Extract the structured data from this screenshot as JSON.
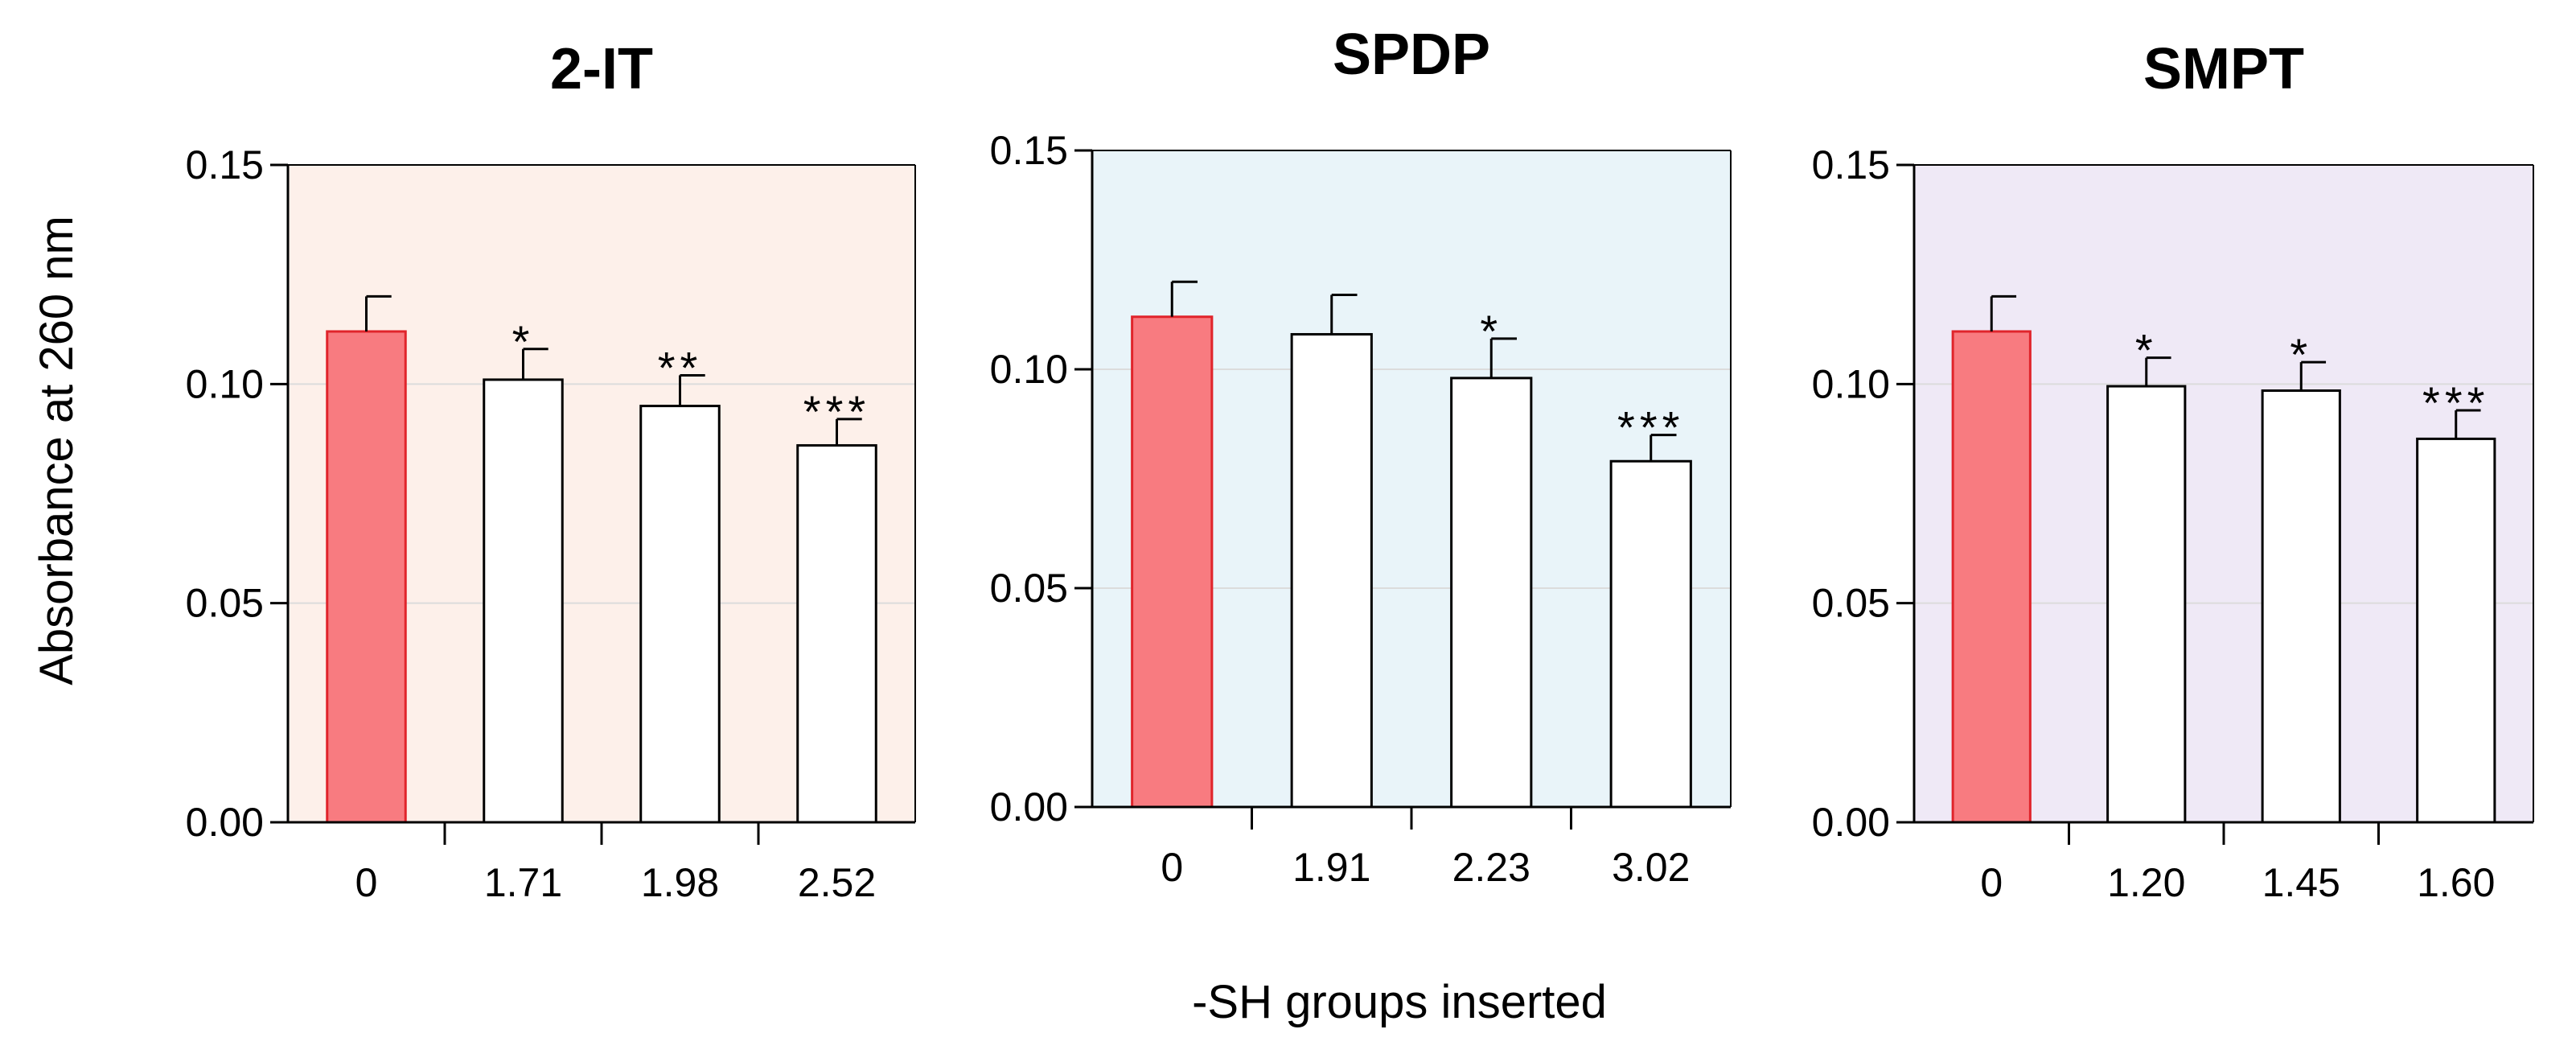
{
  "chart_data": {
    "type": "bar",
    "ylabel": "Absorbance at 260 nm",
    "xlabel": "-SH groups inserted",
    "ylim": [
      0,
      0.15
    ],
    "yticks": [
      "0.00",
      "0.05",
      "0.10",
      "0.15"
    ],
    "grid": true,
    "panels": [
      {
        "title": "2-IT",
        "background_color": "#fdf0ea",
        "categories": [
          "0",
          "1.71",
          "1.98",
          "2.52"
        ],
        "values": [
          0.112,
          0.101,
          0.095,
          0.086
        ],
        "errors": [
          0.008,
          0.007,
          0.007,
          0.006
        ],
        "significance": [
          "",
          "*",
          "**",
          "***"
        ],
        "bar_colors": [
          "#f87b80",
          "#ffffff",
          "#ffffff",
          "#ffffff"
        ]
      },
      {
        "title": "SPDP",
        "background_color": "#e9f4f9",
        "categories": [
          "0",
          "1.91",
          "2.23",
          "3.02"
        ],
        "values": [
          0.112,
          0.108,
          0.098,
          0.079
        ],
        "errors": [
          0.008,
          0.009,
          0.009,
          0.006
        ],
        "significance": [
          "",
          "",
          "*",
          "***"
        ],
        "bar_colors": [
          "#f87b80",
          "#ffffff",
          "#ffffff",
          "#ffffff"
        ]
      },
      {
        "title": "SMPT",
        "background_color": "#efe9f6",
        "categories": [
          "0",
          "1.20",
          "1.45",
          "1.60"
        ],
        "values": [
          0.112,
          0.0995,
          0.0985,
          0.0875
        ],
        "errors": [
          0.008,
          0.0065,
          0.0065,
          0.0065
        ],
        "significance": [
          "",
          "*",
          "*",
          "***"
        ],
        "bar_colors": [
          "#f87b80",
          "#ffffff",
          "#ffffff",
          "#ffffff"
        ]
      }
    ]
  }
}
